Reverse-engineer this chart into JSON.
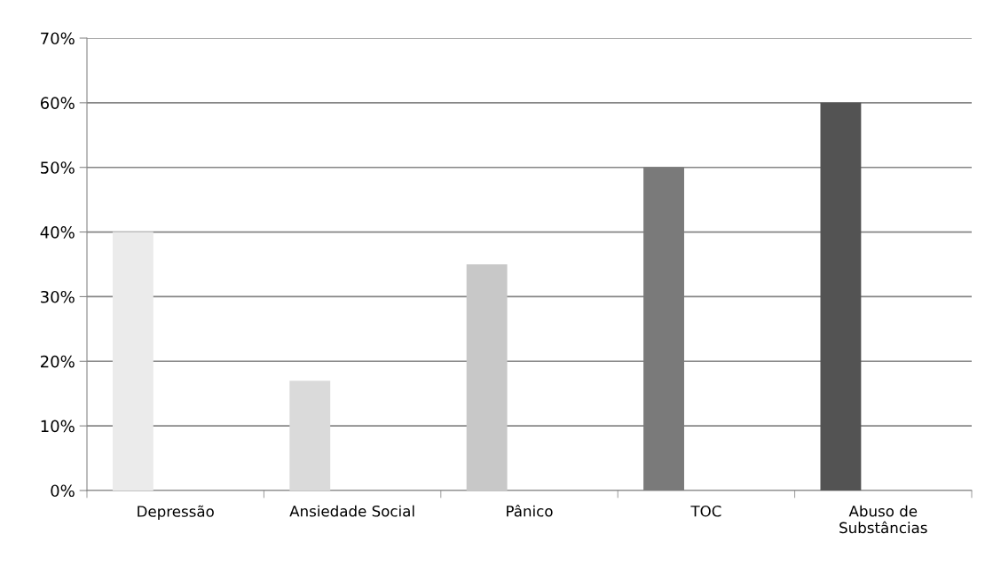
{
  "chart_data": {
    "type": "bar",
    "categories": [
      "Depressão",
      "Ansiedade Social",
      "Pânico",
      "TOC",
      "Abuso de\nSubstâncias"
    ],
    "values": [
      40,
      17,
      35,
      50,
      60
    ],
    "colors": [
      "#ebebeb",
      "#dadada",
      "#c8c8c8",
      "#7a7a7a",
      "#535353"
    ],
    "ylim": [
      0,
      70
    ],
    "yticks": [
      {
        "value": 0,
        "label": "0%"
      },
      {
        "value": 10,
        "label": "10%"
      },
      {
        "value": 20,
        "label": "20%"
      },
      {
        "value": 30,
        "label": "30%"
      },
      {
        "value": 40,
        "label": "40%"
      },
      {
        "value": 50,
        "label": "50%"
      },
      {
        "value": 60,
        "label": "60%"
      },
      {
        "value": 70,
        "label": "70%"
      }
    ],
    "grid": "y",
    "legend": false
  }
}
